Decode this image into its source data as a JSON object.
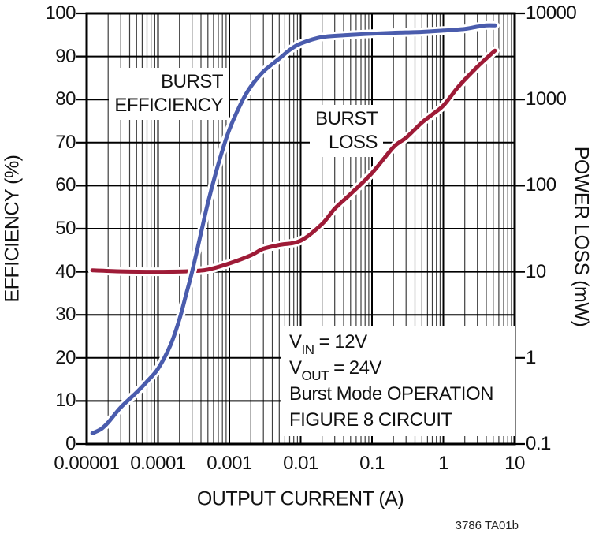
{
  "credit": "3786 TA01b",
  "axes": {
    "x": {
      "title": "OUTPUT CURRENT (A)",
      "scale": "log",
      "min_exp": -5,
      "max_exp": 1,
      "tick_labels": [
        "0.00001",
        "0.0001",
        "0.001",
        "0.01",
        "0.1",
        "1",
        "10"
      ]
    },
    "y_left": {
      "title": "EFFICIENCY (%)",
      "scale": "linear",
      "min": 0,
      "max": 100,
      "step": 10,
      "tick_labels": [
        "0",
        "10",
        "20",
        "30",
        "40",
        "50",
        "60",
        "70",
        "80",
        "90",
        "100"
      ]
    },
    "y_right": {
      "title": "POWER LOSS (mW)",
      "scale": "log",
      "min_exp": -1,
      "max_exp": 4,
      "tick_labels": [
        "10000",
        "1000",
        "100",
        "10",
        "1",
        "0.1"
      ]
    }
  },
  "curve_labels": {
    "efficiency_line1": "BURST",
    "efficiency_line2": "EFFICIENCY",
    "loss_line1": "BURST",
    "loss_line2": "LOSS"
  },
  "annotation": {
    "lines": [
      {
        "pre": "V",
        "sub": "IN",
        "post": " = 12V"
      },
      {
        "pre": "V",
        "sub": "OUT",
        "post": " = 24V"
      },
      {
        "pre": "Burst Mode OPERATION",
        "sub": "",
        "post": ""
      },
      {
        "pre": "FIGURE 8 CIRCUIT",
        "sub": "",
        "post": ""
      }
    ]
  },
  "colors": {
    "efficiency": "#4a5cad",
    "loss": "#9e1b37",
    "grid_minor": "#3f3f3f",
    "grid_major": "#000000",
    "axis": "#000000",
    "halo": "#ffffff"
  },
  "chart_data": {
    "type": "line",
    "title": "",
    "xlabel": "OUTPUT CURRENT (A)",
    "x_scale": "log",
    "x_range": [
      1e-05,
      10
    ],
    "ylabel_left": "EFFICIENCY (%)",
    "y_left_range": [
      0,
      100
    ],
    "ylabel_right": "POWER LOSS (mW)",
    "y_right_scale": "log",
    "y_right_range": [
      0.1,
      10000
    ],
    "grid": true,
    "legend_position": "inline-labels",
    "series": [
      {
        "name": "BURST EFFICIENCY",
        "axis": "left",
        "unit": "%",
        "color": "#4a5cad",
        "points": [
          [
            1.2e-05,
            2.5
          ],
          [
            1.6e-05,
            3.5
          ],
          [
            2e-05,
            5
          ],
          [
            3e-05,
            8.5
          ],
          [
            5e-05,
            12
          ],
          [
            7e-05,
            14.5
          ],
          [
            0.0001,
            17.5
          ],
          [
            0.00015,
            23
          ],
          [
            0.0002,
            29
          ],
          [
            0.00025,
            35
          ],
          [
            0.0003,
            40
          ],
          [
            0.0004,
            49
          ],
          [
            0.0005,
            56
          ],
          [
            0.0007,
            65
          ],
          [
            0.001,
            73
          ],
          [
            0.0015,
            79.5
          ],
          [
            0.002,
            83
          ],
          [
            0.003,
            86.5
          ],
          [
            0.005,
            89.5
          ],
          [
            0.007,
            91.5
          ],
          [
            0.01,
            93
          ],
          [
            0.02,
            94.5
          ],
          [
            0.05,
            95
          ],
          [
            0.1,
            95.3
          ],
          [
            0.2,
            95.5
          ],
          [
            0.5,
            95.7
          ],
          [
            1,
            96
          ],
          [
            2,
            96.4
          ],
          [
            3,
            96.9
          ],
          [
            4,
            97.2
          ],
          [
            5.3,
            97.2
          ]
        ]
      },
      {
        "name": "BURST LOSS",
        "axis": "right",
        "unit": "mW",
        "color": "#9e1b37",
        "points": [
          [
            1.2e-05,
            10.4
          ],
          [
            3e-05,
            10.1
          ],
          [
            0.0001,
            10
          ],
          [
            0.0003,
            10.2
          ],
          [
            0.0005,
            10.6
          ],
          [
            0.001,
            12.5
          ],
          [
            0.002,
            15.5
          ],
          [
            0.003,
            18.5
          ],
          [
            0.005,
            20.5
          ],
          [
            0.01,
            23
          ],
          [
            0.02,
            36
          ],
          [
            0.03,
            54
          ],
          [
            0.05,
            80
          ],
          [
            0.1,
            140
          ],
          [
            0.2,
            280
          ],
          [
            0.3,
            360
          ],
          [
            0.5,
            540
          ],
          [
            0.7,
            670
          ],
          [
            1,
            850
          ],
          [
            1.5,
            1300
          ],
          [
            2,
            1700
          ],
          [
            3,
            2400
          ],
          [
            4,
            3000
          ],
          [
            5.3,
            3700
          ]
        ]
      }
    ]
  }
}
